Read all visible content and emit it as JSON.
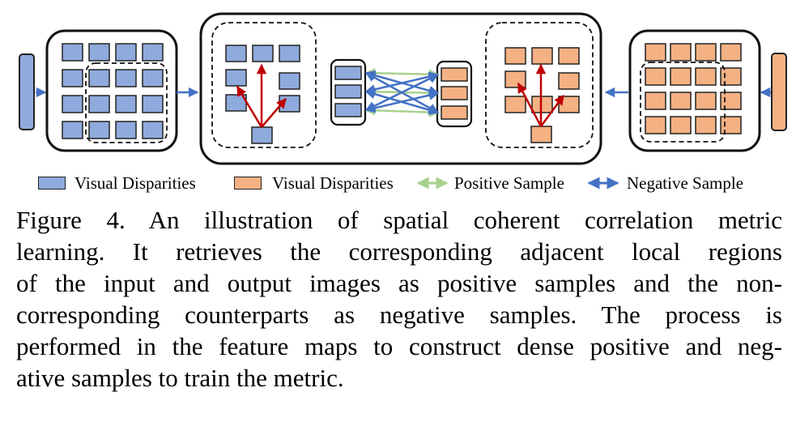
{
  "legend": {
    "blue_label": "Visual Disparities",
    "orange_label": "Visual Disparities",
    "positive_label": "Positive Sample",
    "negative_label": "Negative Sample"
  },
  "colors": {
    "blue_fill": "#8faadc",
    "orange_fill": "#f4b183",
    "positive_arrow": "#a9d18e",
    "negative_arrow": "#4472c4",
    "red_arrow": "#c00000",
    "stroke": "#222222"
  },
  "caption": {
    "lines": [
      "Figure 4.  An illustration of spatial coherent correlation metric",
      "learning.  It retrieves the corresponding adjacent local regions",
      "of the input and output images as positive samples and the non-",
      "corresponding counterparts as negative samples.  The process is",
      "performed in the feature maps to construct dense positive and neg-",
      "ative samples to train the metric."
    ]
  }
}
